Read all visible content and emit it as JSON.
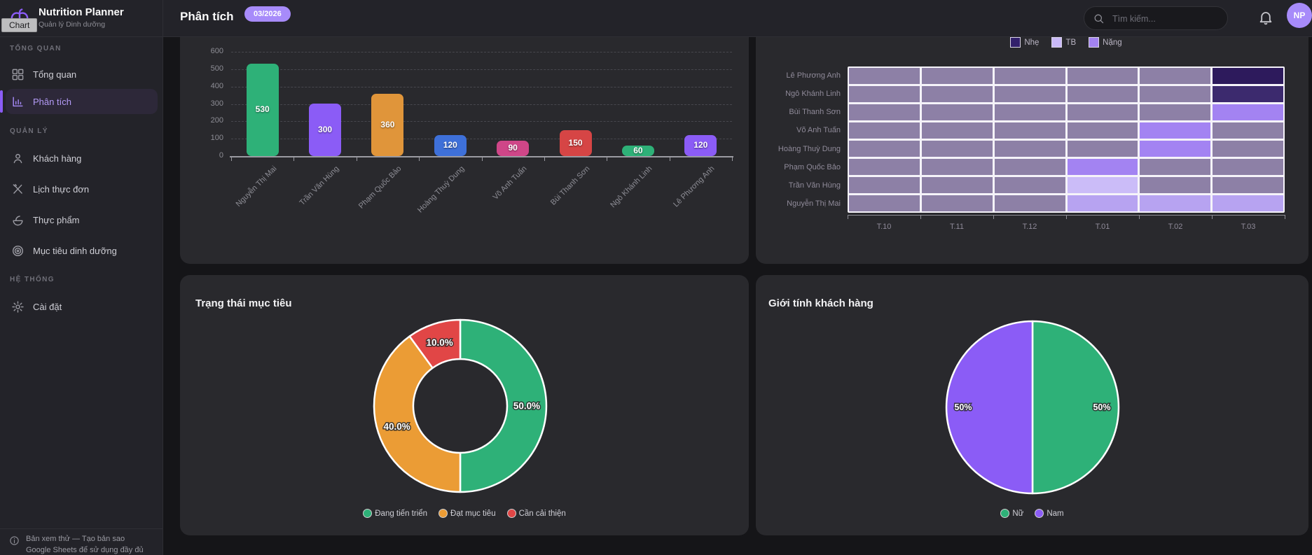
{
  "app": {
    "title": "Nutrition Planner",
    "subtitle": "Quản lý Dinh dưỡng",
    "tooltip": "Chart",
    "avatar_initials": "NP"
  },
  "header": {
    "page_title": "Phân tích",
    "badge": "03/2026",
    "search_placeholder": "Tìm kiếm..."
  },
  "sidebar": {
    "sections": [
      {
        "label": "TỔNG QUAN",
        "items": [
          {
            "label": "Tổng quan",
            "icon": "grid-icon",
            "active": false
          },
          {
            "label": "Phân tích",
            "icon": "bar-chart-icon",
            "active": true
          }
        ]
      },
      {
        "label": "QUẢN LÝ",
        "items": [
          {
            "label": "Khách hàng",
            "icon": "person-icon",
            "active": false
          },
          {
            "label": "Lịch thực đơn",
            "icon": "utensils-icon",
            "active": false
          },
          {
            "label": "Thực phẩm",
            "icon": "salad-icon",
            "active": false
          },
          {
            "label": "Mục tiêu dinh dưỡng",
            "icon": "target-icon",
            "active": false
          }
        ]
      },
      {
        "label": "HỆ THỐNG",
        "items": [
          {
            "label": "Cài đặt",
            "icon": "gear-icon",
            "active": false
          }
        ]
      }
    ],
    "footer": {
      "line1": "Bản xem thử — Tạo bản sao",
      "line2": "Google Sheets để sử dụng đầy đủ"
    }
  },
  "chart_data": [
    {
      "type": "bar",
      "title": "",
      "categories": [
        "Nguyễn Thị Mai",
        "Trần Văn Hùng",
        "Phạm Quốc Bảo",
        "Hoàng Thuỳ Dung",
        "Võ Anh Tuấn",
        "Bùi Thanh Sơn",
        "Ngô Khánh Linh",
        "Lê Phương Anh"
      ],
      "values": [
        530,
        300,
        360,
        120,
        90,
        150,
        60,
        120
      ],
      "bar_colors": [
        "#2eb178",
        "#8b5cf6",
        "#e0953a",
        "#3e70d9",
        "#cf4688",
        "#d64545",
        "#2eb178",
        "#8b5cf6"
      ],
      "ylim": [
        0,
        600
      ],
      "yticks": [
        0,
        100,
        200,
        300,
        400,
        500,
        600
      ],
      "grid": true
    },
    {
      "type": "heatmap",
      "legend": [
        {
          "label": "Nhẹ",
          "color": "#32206b"
        },
        {
          "label": "TB",
          "color": "#c9b9f8"
        },
        {
          "label": "Nặng",
          "color": "#a383f2"
        }
      ],
      "rows": [
        "Lê Phương Anh",
        "Ngô Khánh Linh",
        "Bùi Thanh Sơn",
        "Võ Anh Tuấn",
        "Hoàng Thuỳ Dung",
        "Phạm Quốc Bảo",
        "Trần Văn Hùng",
        "Nguyễn Thị Mai"
      ],
      "columns": [
        "T.10",
        "T.11",
        "T.12",
        "T.01",
        "T.02",
        "T.03"
      ],
      "palette": {
        "m": "#8d80a6",
        "d1": "#2d1a5c",
        "d2": "#3c2a6e",
        "b": "#a383f2",
        "l": "#cbbcf8",
        "l2": "#b7a3f1"
      },
      "cells": [
        [
          "m",
          "m",
          "m",
          "m",
          "m",
          "d1"
        ],
        [
          "m",
          "m",
          "m",
          "m",
          "m",
          "d2"
        ],
        [
          "m",
          "m",
          "m",
          "m",
          "m",
          "b"
        ],
        [
          "m",
          "m",
          "m",
          "m",
          "b",
          "m"
        ],
        [
          "m",
          "m",
          "m",
          "m",
          "b",
          "m"
        ],
        [
          "m",
          "m",
          "m",
          "b",
          "m",
          "m"
        ],
        [
          "m",
          "m",
          "m",
          "l",
          "m",
          "m"
        ],
        [
          "m",
          "m",
          "m",
          "l2",
          "l2",
          "l2"
        ]
      ]
    },
    {
      "type": "donut",
      "title": "Trạng thái mục tiêu",
      "labels": [
        "Đang tiến triển",
        "Đạt mục tiêu",
        "Cần cải thiện"
      ],
      "values": [
        50,
        40,
        10
      ],
      "slice_labels": [
        "50.0%",
        "40.0%",
        "10.0%"
      ],
      "colors": [
        "#2eb178",
        "#eb9c35",
        "#e14646"
      ],
      "legend_position": "bottom"
    },
    {
      "type": "pie",
      "title": "Giới tính khách hàng",
      "labels": [
        "Nữ",
        "Nam"
      ],
      "values": [
        50,
        50
      ],
      "slice_labels": [
        "50%",
        "50%"
      ],
      "colors": [
        "#2eb178",
        "#8b5cf6"
      ],
      "legend_position": "bottom"
    }
  ]
}
